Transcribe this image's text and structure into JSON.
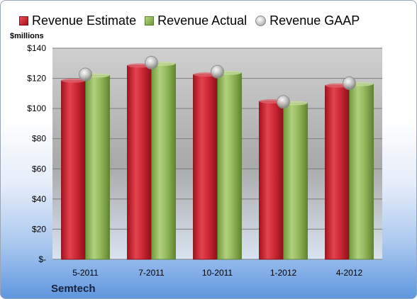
{
  "legend": {
    "estimate": "Revenue Estimate",
    "actual": "Revenue Actual",
    "gaap": "Revenue GAAP"
  },
  "company": "Semtech",
  "chart_data": {
    "type": "bar",
    "ylabel": "$millions",
    "categories": [
      "5-2011",
      "7-2011",
      "10-2011",
      "1-2012",
      "4-2012"
    ],
    "series": [
      {
        "name": "Revenue Estimate",
        "values": [
          118.5,
          128.5,
          122.5,
          104.7,
          115.2
        ],
        "color": "#c8202e"
      },
      {
        "name": "Revenue Actual",
        "values": [
          121.9,
          129.7,
          123.7,
          103.6,
          116.2
        ],
        "color": "#8fb55a"
      },
      {
        "name": "Revenue GAAP",
        "values": [
          122.6,
          130.4,
          124.4,
          104.4,
          116.8
        ],
        "color": "#bdbdbd"
      }
    ],
    "ylim": [
      0,
      140
    ],
    "yticks": [
      0,
      20,
      40,
      60,
      80,
      100,
      120,
      140
    ],
    "ytick_labels": [
      "$-",
      "$20",
      "$40",
      "$60",
      "$80",
      "$100",
      "$120",
      "$140"
    ],
    "grid": true,
    "legend_position": "top"
  }
}
